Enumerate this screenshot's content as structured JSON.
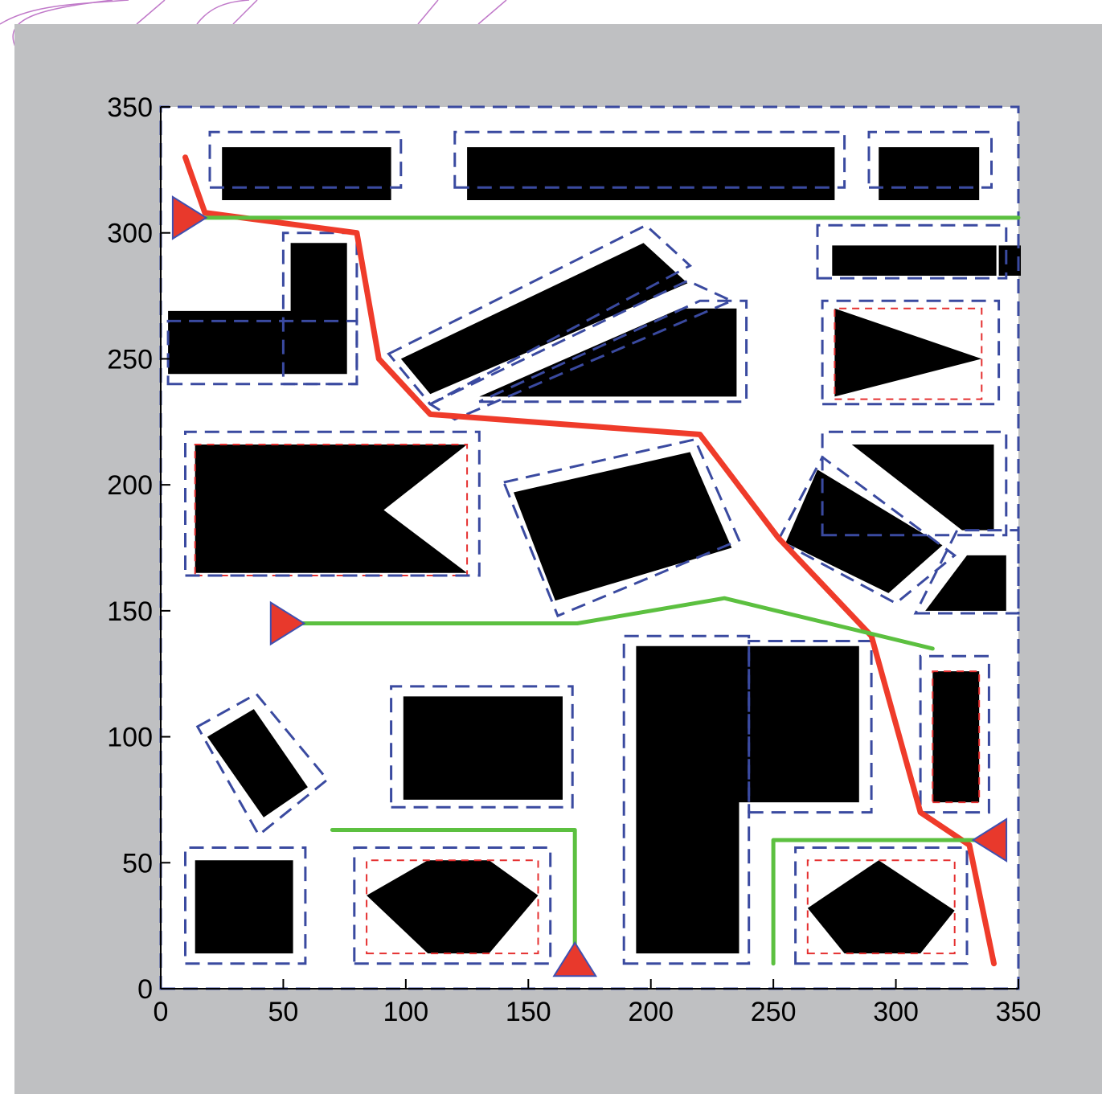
{
  "chart_data": {
    "type": "scatter",
    "title": "",
    "xlabel": "",
    "ylabel": "",
    "xlim": [
      0,
      350
    ],
    "ylim": [
      0,
      350
    ],
    "xticks": [
      0,
      50,
      100,
      150,
      200,
      250,
      300,
      350
    ],
    "yticks": [
      0,
      50,
      100,
      150,
      200,
      250,
      300,
      350
    ],
    "grid": false,
    "legend": "none",
    "colors": {
      "background": "#bfc0c2",
      "obstacle": "#000000",
      "boundary": "#3a4aa0",
      "inner_boundary": "#e53030",
      "red_path": "#ef3b2a",
      "green_path": "#5cc040",
      "marker": "#e8392c",
      "marker_edge": "#4050b0"
    },
    "obstacles": [
      {
        "type": "polygon",
        "points": [
          [
            25,
            313
          ],
          [
            94,
            313
          ],
          [
            94,
            334
          ],
          [
            25,
            334
          ]
        ]
      },
      {
        "type": "polygon",
        "points": [
          [
            125,
            313
          ],
          [
            275,
            313
          ],
          [
            275,
            334
          ],
          [
            125,
            334
          ]
        ]
      },
      {
        "type": "polygon",
        "points": [
          [
            293,
            313
          ],
          [
            334,
            313
          ],
          [
            334,
            334
          ],
          [
            293,
            334
          ]
        ]
      },
      {
        "type": "polygon",
        "points": [
          [
            53,
            244
          ],
          [
            76,
            244
          ],
          [
            76,
            296
          ],
          [
            53,
            296
          ],
          [
            53,
            269
          ],
          [
            3,
            269
          ],
          [
            3,
            244
          ]
        ]
      },
      {
        "type": "polygon",
        "points": [
          [
            98,
            250
          ],
          [
            197,
            296
          ],
          [
            215,
            280
          ],
          [
            110,
            236
          ]
        ]
      },
      {
        "type": "polygon",
        "points": [
          [
            130,
            235
          ],
          [
            235,
            235
          ],
          [
            235,
            270
          ],
          [
            212,
            270
          ]
        ]
      },
      {
        "type": "polygon",
        "points": [
          [
            351,
            283
          ],
          [
            342,
            283
          ],
          [
            342,
            295
          ],
          [
            351,
            295
          ]
        ]
      },
      {
        "type": "polygon",
        "points": [
          [
            274,
            283
          ],
          [
            341,
            283
          ],
          [
            341,
            295
          ],
          [
            274,
            295
          ]
        ]
      },
      {
        "type": "polygon",
        "points": [
          [
            275,
            235
          ],
          [
            335,
            250
          ],
          [
            275,
            270
          ]
        ]
      },
      {
        "type": "polygon",
        "points": [
          [
            14,
            165
          ],
          [
            125,
            165
          ],
          [
            91,
            190
          ],
          [
            125,
            216
          ],
          [
            14,
            216
          ]
        ]
      },
      {
        "type": "polygon",
        "points": [
          [
            144,
            197
          ],
          [
            216,
            213
          ],
          [
            233,
            175
          ],
          [
            161,
            154
          ]
        ]
      },
      {
        "type": "polygon",
        "points": [
          [
            255,
            177
          ],
          [
            268,
            206
          ],
          [
            319,
            176
          ],
          [
            297,
            157
          ]
        ]
      },
      {
        "type": "polygon",
        "points": [
          [
            282,
            216
          ],
          [
            340,
            216
          ],
          [
            340,
            182
          ],
          [
            327,
            182
          ]
        ]
      },
      {
        "type": "polygon",
        "points": [
          [
            312,
            150
          ],
          [
            345,
            150
          ],
          [
            345,
            172
          ],
          [
            329,
            172
          ]
        ]
      },
      {
        "type": "polygon",
        "points": [
          [
            19,
            100
          ],
          [
            38,
            111
          ],
          [
            60,
            80
          ],
          [
            42,
            68
          ]
        ]
      },
      {
        "type": "polygon",
        "points": [
          [
            99,
            75
          ],
          [
            164,
            75
          ],
          [
            164,
            116
          ],
          [
            99,
            116
          ]
        ]
      },
      {
        "type": "polygon",
        "points": [
          [
            194,
            14
          ],
          [
            236,
            14
          ],
          [
            236,
            74
          ],
          [
            285,
            74
          ],
          [
            285,
            136
          ],
          [
            194,
            136
          ]
        ]
      },
      {
        "type": "polygon",
        "points": [
          [
            315,
            74
          ],
          [
            334,
            74
          ],
          [
            334,
            126
          ],
          [
            315,
            126
          ],
          [
            315,
            100
          ]
        ]
      },
      {
        "type": "polygon",
        "points": [
          [
            14,
            14
          ],
          [
            54,
            14
          ],
          [
            54,
            51
          ],
          [
            14,
            51
          ]
        ]
      },
      {
        "type": "polygon",
        "points": [
          [
            84,
            37
          ],
          [
            109,
            51
          ],
          [
            134,
            51
          ],
          [
            154,
            37
          ],
          [
            134,
            14
          ],
          [
            109,
            14
          ]
        ]
      },
      {
        "type": "polygon",
        "points": [
          [
            264,
            32
          ],
          [
            293,
            51
          ],
          [
            324,
            31
          ],
          [
            310,
            14
          ],
          [
            279,
            14
          ]
        ]
      }
    ],
    "boundaries": [
      {
        "points": [
          [
            0,
            0
          ],
          [
            350,
            0
          ],
          [
            350,
            350
          ],
          [
            0,
            350
          ]
        ]
      },
      {
        "points": [
          [
            20,
            318
          ],
          [
            98,
            318
          ],
          [
            98,
            340
          ],
          [
            20,
            340
          ]
        ]
      },
      {
        "points": [
          [
            120,
            318
          ],
          [
            279,
            318
          ],
          [
            279,
            340
          ],
          [
            120,
            340
          ]
        ]
      },
      {
        "points": [
          [
            289,
            318
          ],
          [
            339,
            318
          ],
          [
            339,
            340
          ],
          [
            289,
            340
          ]
        ]
      },
      {
        "points": [
          [
            268,
            282
          ],
          [
            345,
            282
          ],
          [
            345,
            303
          ],
          [
            268,
            303
          ]
        ]
      },
      {
        "points": [
          [
            50,
            240
          ],
          [
            80,
            240
          ],
          [
            80,
            300
          ],
          [
            50,
            300
          ]
        ]
      },
      {
        "points": [
          [
            3,
            240
          ],
          [
            80,
            240
          ],
          [
            80,
            265
          ],
          [
            3,
            265
          ]
        ]
      },
      {
        "points": [
          [
            93,
            252
          ],
          [
            198,
            303
          ],
          [
            216,
            287
          ],
          [
            110,
            232
          ]
        ]
      },
      {
        "points": [
          [
            110,
            232
          ],
          [
            215,
            281
          ],
          [
            233,
            273
          ],
          [
            120,
            226
          ]
        ]
      },
      {
        "points": [
          [
            130,
            233
          ],
          [
            239,
            233
          ],
          [
            239,
            273
          ],
          [
            220,
            273
          ]
        ]
      },
      {
        "points": [
          [
            270,
            232
          ],
          [
            342,
            232
          ],
          [
            342,
            273
          ],
          [
            270,
            273
          ]
        ]
      },
      {
        "points": [
          [
            10,
            164
          ],
          [
            130,
            164
          ],
          [
            130,
            221
          ],
          [
            10,
            221
          ]
        ]
      },
      {
        "points": [
          [
            140,
            201
          ],
          [
            218,
            218
          ],
          [
            236,
            178
          ],
          [
            162,
            148
          ]
        ]
      },
      {
        "points": [
          [
            252,
            178
          ],
          [
            270,
            211
          ],
          [
            324,
            172
          ],
          [
            300,
            153
          ]
        ]
      },
      {
        "points": [
          [
            270,
            180
          ],
          [
            345,
            180
          ],
          [
            345,
            221
          ],
          [
            270,
            221
          ]
        ]
      },
      {
        "points": [
          [
            308,
            149
          ],
          [
            350,
            149
          ],
          [
            350,
            182
          ],
          [
            325,
            182
          ]
        ]
      },
      {
        "points": [
          [
            15,
            104
          ],
          [
            39,
            117
          ],
          [
            68,
            83
          ],
          [
            40,
            61
          ]
        ]
      },
      {
        "points": [
          [
            94,
            72
          ],
          [
            168,
            72
          ],
          [
            168,
            120
          ],
          [
            94,
            120
          ]
        ]
      },
      {
        "points": [
          [
            189,
            10
          ],
          [
            240,
            10
          ],
          [
            240,
            140
          ],
          [
            189,
            140
          ]
        ]
      },
      {
        "points": [
          [
            240,
            70
          ],
          [
            290,
            70
          ],
          [
            290,
            138
          ],
          [
            240,
            138
          ]
        ]
      },
      {
        "points": [
          [
            310,
            70
          ],
          [
            338,
            70
          ],
          [
            338,
            132
          ],
          [
            310,
            132
          ]
        ]
      },
      {
        "points": [
          [
            10,
            10
          ],
          [
            59,
            10
          ],
          [
            59,
            56
          ],
          [
            10,
            56
          ]
        ]
      },
      {
        "points": [
          [
            79,
            10
          ],
          [
            159,
            10
          ],
          [
            159,
            56
          ],
          [
            79,
            56
          ]
        ]
      },
      {
        "points": [
          [
            259,
            10
          ],
          [
            329,
            10
          ],
          [
            329,
            56
          ],
          [
            259,
            56
          ]
        ]
      }
    ],
    "inner_boundaries": [
      {
        "points": [
          [
            84,
            14
          ],
          [
            154,
            14
          ],
          [
            154,
            51
          ],
          [
            84,
            51
          ]
        ]
      },
      {
        "points": [
          [
            264,
            14
          ],
          [
            324,
            14
          ],
          [
            324,
            51
          ],
          [
            264,
            51
          ]
        ]
      },
      {
        "points": [
          [
            275,
            234
          ],
          [
            335,
            234
          ],
          [
            335,
            270
          ],
          [
            275,
            270
          ]
        ]
      },
      {
        "points": [
          [
            14,
            164
          ],
          [
            125,
            164
          ],
          [
            125,
            216
          ],
          [
            14,
            216
          ]
        ]
      },
      {
        "points": [
          [
            315,
            74
          ],
          [
            334,
            74
          ],
          [
            334,
            126
          ],
          [
            315,
            126
          ]
        ]
      }
    ],
    "series": [
      {
        "type": "line",
        "color": "red",
        "x": [
          10,
          18,
          80,
          89,
          110,
          220,
          252,
          290,
          310,
          330,
          340
        ],
        "y": [
          330,
          308,
          300,
          250,
          228,
          220,
          179,
          140,
          70,
          57,
          10
        ]
      },
      {
        "type": "line",
        "color": "green",
        "x": [
          10,
          350
        ],
        "y": [
          306,
          306
        ]
      },
      {
        "type": "line",
        "color": "green",
        "x": [
          50,
          170,
          230,
          315
        ],
        "y": [
          145,
          145,
          155,
          135
        ]
      },
      {
        "type": "line",
        "color": "green",
        "x": [
          70,
          169,
          169
        ],
        "y": [
          63,
          63,
          10
        ]
      },
      {
        "type": "line",
        "color": "green",
        "x": [
          250,
          250,
          340
        ],
        "y": [
          10,
          59,
          59
        ]
      }
    ],
    "markers": [
      {
        "x": 10,
        "y": 306,
        "direction": "right"
      },
      {
        "x": 50,
        "y": 145,
        "direction": "right"
      },
      {
        "x": 169,
        "y": 10,
        "direction": "up"
      },
      {
        "x": 340,
        "y": 59,
        "direction": "left"
      }
    ]
  }
}
